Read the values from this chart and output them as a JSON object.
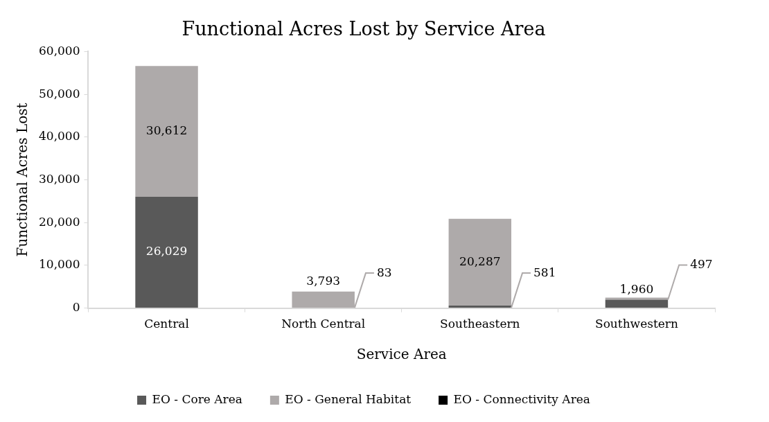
{
  "chart_data": {
    "type": "bar",
    "title": "Functional Acres Lost by Service Area",
    "xlabel": "Service Area",
    "ylabel": "Functional Acres Lost",
    "categories": [
      "Central",
      "North Central",
      "Southeastern",
      "Southwestern"
    ],
    "stacked": true,
    "series": [
      {
        "name": "EO - Core Area",
        "color": "#595959",
        "values": [
          26029,
          83,
          581,
          1960
        ],
        "value_labels": [
          "26,029",
          "83",
          "581",
          "1,960"
        ]
      },
      {
        "name": "EO - General Habitat",
        "color": "#aeaaaa",
        "values": [
          30612,
          3793,
          20287,
          497
        ],
        "value_labels": [
          "30,612",
          "3,793",
          "20,287",
          "497"
        ]
      },
      {
        "name": "EO - Connectivity Area",
        "color": "#000000",
        "values": [
          null,
          null,
          null,
          null
        ]
      }
    ],
    "ylim": [
      0,
      60000
    ],
    "yticks": [
      {
        "value": 0,
        "label": "0"
      },
      {
        "value": 10000,
        "label": "10,000"
      },
      {
        "value": 20000,
        "label": "20,000"
      },
      {
        "value": 30000,
        "label": "30,000"
      },
      {
        "value": 40000,
        "label": "40,000"
      },
      {
        "value": 50000,
        "label": "50,000"
      },
      {
        "value": 60000,
        "label": "60,000"
      }
    ],
    "legend": "bottom",
    "grid": false
  }
}
